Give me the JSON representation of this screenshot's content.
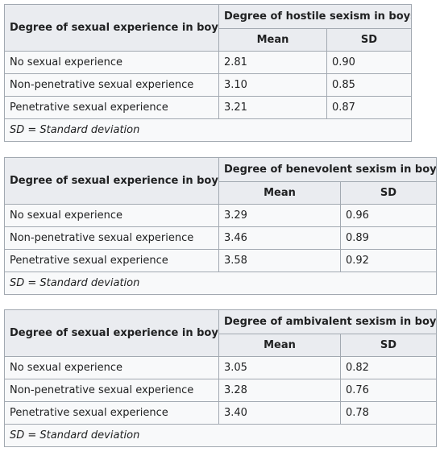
{
  "tables": [
    {
      "row_header": "Degree of sexual experience in boys",
      "group_header": "Degree of hostile sexism in boys",
      "col_mean": "Mean",
      "col_sd": "SD",
      "rows": [
        {
          "label": "No sexual experience",
          "mean": "2.81",
          "sd": "0.90"
        },
        {
          "label": "Non-penetrative sexual experience",
          "mean": "3.10",
          "sd": "0.85"
        },
        {
          "label": "Penetrative sexual experience",
          "mean": "3.21",
          "sd": "0.87"
        }
      ],
      "footnote": "SD = Standard deviation"
    },
    {
      "row_header": "Degree of sexual experience in boys",
      "group_header": "Degree of benevolent sexism in boys",
      "col_mean": "Mean",
      "col_sd": "SD",
      "rows": [
        {
          "label": "No sexual experience",
          "mean": "3.29",
          "sd": "0.96"
        },
        {
          "label": "Non-penetrative sexual experience",
          "mean": "3.46",
          "sd": "0.89"
        },
        {
          "label": "Penetrative sexual experience",
          "mean": "3.58",
          "sd": "0.92"
        }
      ],
      "footnote": "SD = Standard deviation"
    },
    {
      "row_header": "Degree of sexual experience in boys",
      "group_header": "Degree of ambivalent sexism in boys",
      "col_mean": "Mean",
      "col_sd": "SD",
      "rows": [
        {
          "label": "No sexual experience",
          "mean": "3.05",
          "sd": "0.82"
        },
        {
          "label": "Non-penetrative sexual experience",
          "mean": "3.28",
          "sd": "0.76"
        },
        {
          "label": "Penetrative sexual experience",
          "mean": "3.40",
          "sd": "0.78"
        }
      ],
      "footnote": "SD = Standard deviation"
    }
  ]
}
